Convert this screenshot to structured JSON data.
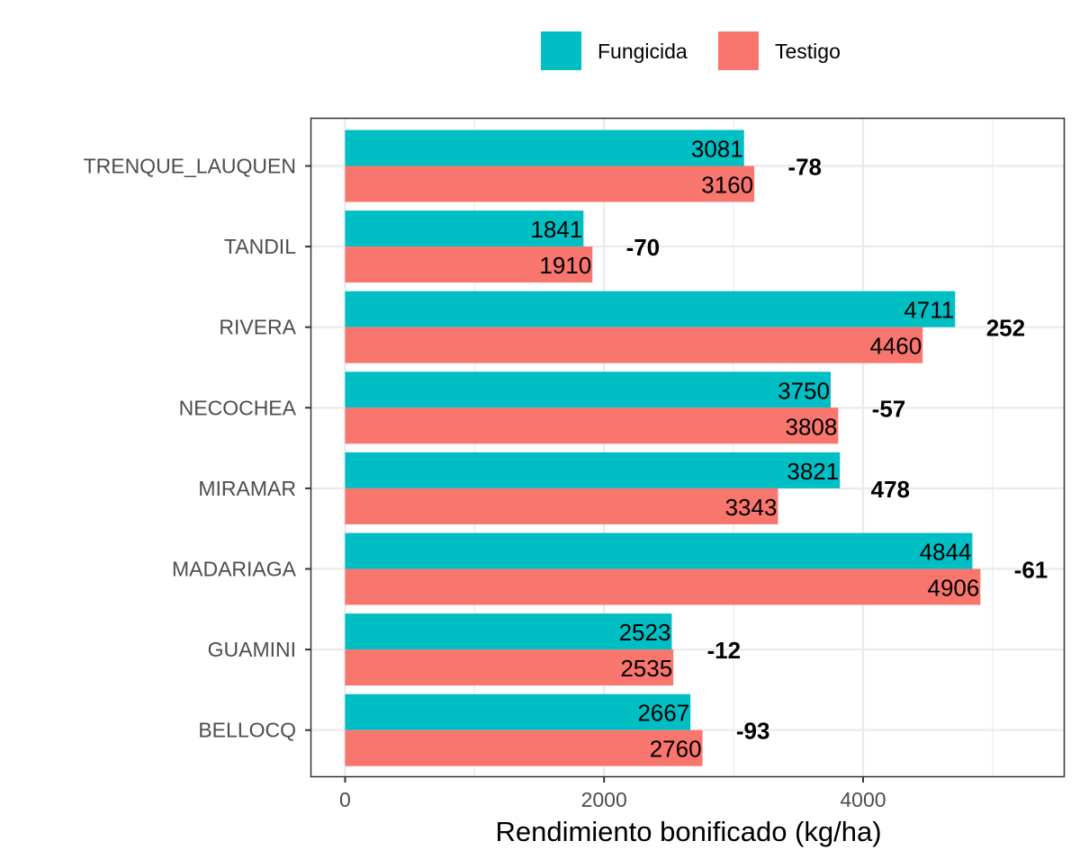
{
  "chart_data": {
    "type": "bar",
    "orientation": "horizontal",
    "title": "",
    "xlabel": "Rendimiento bonificado (kg/ha)",
    "ylabel": "",
    "xlim": [
      -260,
      5550
    ],
    "xticks": [
      0,
      2000,
      4000
    ],
    "categories": [
      "TRENQUE_LAUQUEN",
      "TANDIL",
      "RIVERA",
      "NECOCHEA",
      "MIRAMAR",
      "MADARIAGA",
      "GUAMINI",
      "BELLOCQ"
    ],
    "series": [
      {
        "name": "Fungicida",
        "color": "#00BFC4",
        "values": [
          3081,
          1841,
          4711,
          3750,
          3821,
          4844,
          2523,
          2667
        ]
      },
      {
        "name": "Testigo",
        "color": "#F8766D",
        "values": [
          3160,
          1910,
          4460,
          3808,
          3343,
          4906,
          2535,
          2760
        ]
      }
    ],
    "differences": [
      "-78",
      "-70",
      "252",
      "-57",
      "478",
      "-61",
      "-12",
      "-93"
    ],
    "legend": {
      "position": "top",
      "items": [
        "Fungicida",
        "Testigo"
      ]
    },
    "grid": true
  }
}
